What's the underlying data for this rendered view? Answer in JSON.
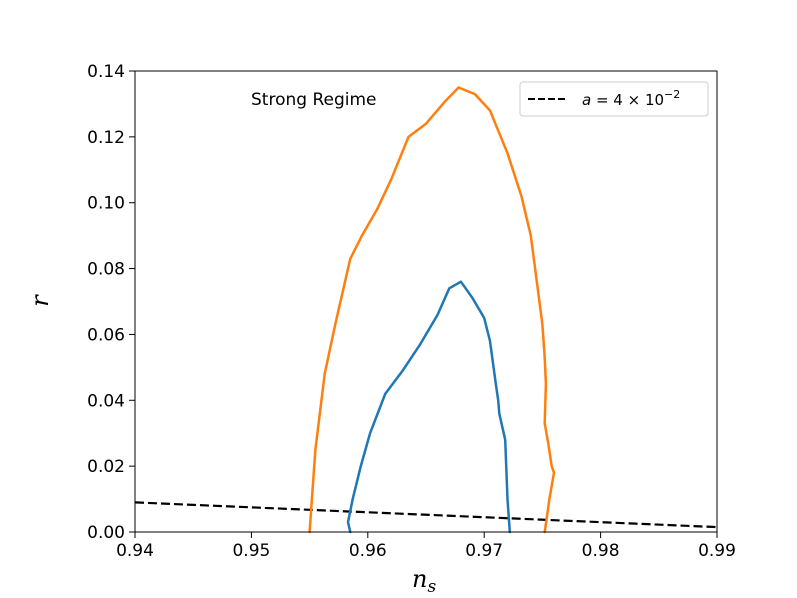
{
  "chart_data": {
    "type": "line",
    "title": "",
    "xlabel": "n",
    "xlabel_sub": "s",
    "ylabel": "r",
    "xlim": [
      0.94,
      0.99
    ],
    "ylim": [
      0.0,
      0.14
    ],
    "xticks": [
      0.94,
      0.95,
      0.96,
      0.97,
      0.98,
      0.99
    ],
    "xtick_labels": [
      "0.94",
      "0.95",
      "0.96",
      "0.97",
      "0.98",
      "0.99"
    ],
    "yticks": [
      0.0,
      0.02,
      0.04,
      0.06,
      0.08,
      0.1,
      0.12,
      0.14
    ],
    "ytick_labels": [
      "0.00",
      "0.02",
      "0.04",
      "0.06",
      "0.08",
      "0.10",
      "0.12",
      "0.14"
    ],
    "grid": false,
    "legend_position": "top-right",
    "annotation": "Strong Regime",
    "colors": {
      "inner": "#1f77b4",
      "outer": "#ff7f0e",
      "dashed": "#000000"
    },
    "series": [
      {
        "name": "a = 4 × 10⁻²",
        "legend_text": {
          "main": "a = 4 × 10",
          "exp": "−2"
        },
        "style": "dashed",
        "x": [
          0.94,
          0.99
        ],
        "y": [
          0.009,
          0.0015
        ]
      },
      {
        "style": "solid",
        "color_key": "inner",
        "x": [
          0.9585,
          0.9583,
          0.9587,
          0.9594,
          0.9602,
          0.9615,
          0.963,
          0.9645,
          0.966,
          0.967,
          0.968,
          0.969,
          0.97,
          0.9705,
          0.971,
          0.9712,
          0.9713,
          0.9718,
          0.972,
          0.9722
        ],
        "y": [
          0.0,
          0.003,
          0.01,
          0.02,
          0.03,
          0.042,
          0.049,
          0.057,
          0.066,
          0.074,
          0.076,
          0.071,
          0.065,
          0.058,
          0.045,
          0.04,
          0.036,
          0.028,
          0.01,
          0.0
        ]
      },
      {
        "style": "solid",
        "color_key": "outer",
        "x": [
          0.955,
          0.9552,
          0.9555,
          0.9563,
          0.9572,
          0.9585,
          0.9595,
          0.9608,
          0.962,
          0.9635,
          0.965,
          0.9667,
          0.9678,
          0.9692,
          0.9705,
          0.972,
          0.9732,
          0.974,
          0.9746,
          0.975,
          0.9752,
          0.9753,
          0.9752,
          0.9755,
          0.9758,
          0.976,
          0.9756,
          0.9754,
          0.9752
        ],
        "y": [
          0.0,
          0.01,
          0.025,
          0.048,
          0.063,
          0.083,
          0.09,
          0.098,
          0.107,
          0.12,
          0.124,
          0.131,
          0.135,
          0.133,
          0.128,
          0.115,
          0.102,
          0.09,
          0.074,
          0.063,
          0.053,
          0.045,
          0.033,
          0.027,
          0.02,
          0.018,
          0.01,
          0.005,
          0.0
        ]
      }
    ]
  }
}
